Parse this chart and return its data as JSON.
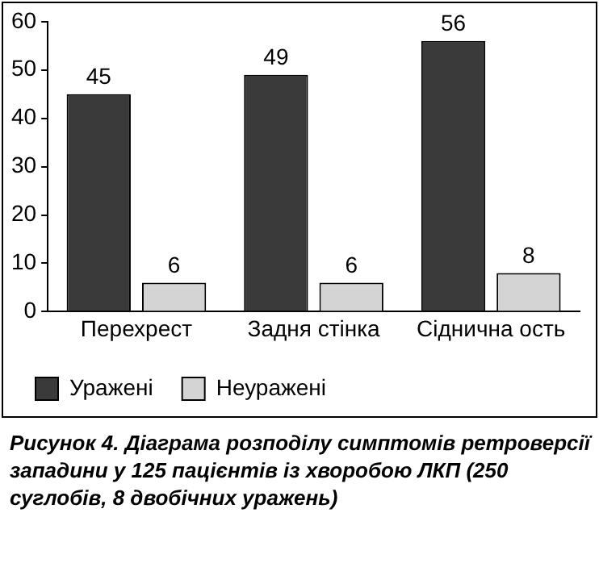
{
  "chart_data": {
    "type": "bar",
    "categories": [
      "Перехрест",
      "Задня стінка",
      "Сіднична ость"
    ],
    "series": [
      {
        "name": "Уражені",
        "color": "#3a3a3a",
        "values": [
          45,
          49,
          56
        ]
      },
      {
        "name": "Неуражені",
        "color": "#d4d4d4",
        "values": [
          6,
          6,
          8
        ]
      }
    ],
    "ylim": [
      0,
      60
    ],
    "yticks": [
      0,
      10,
      20,
      30,
      40,
      50,
      60
    ],
    "grid": false,
    "legend": "bottom",
    "data_labels": true,
    "annotations": [
      "Рисунок 4. Діаграма розподілу симптомів ретроверсії западини у 125 пацієнтів із хворобою ЛКП (250 суглобів, 8 двобічних уражень)"
    ]
  }
}
